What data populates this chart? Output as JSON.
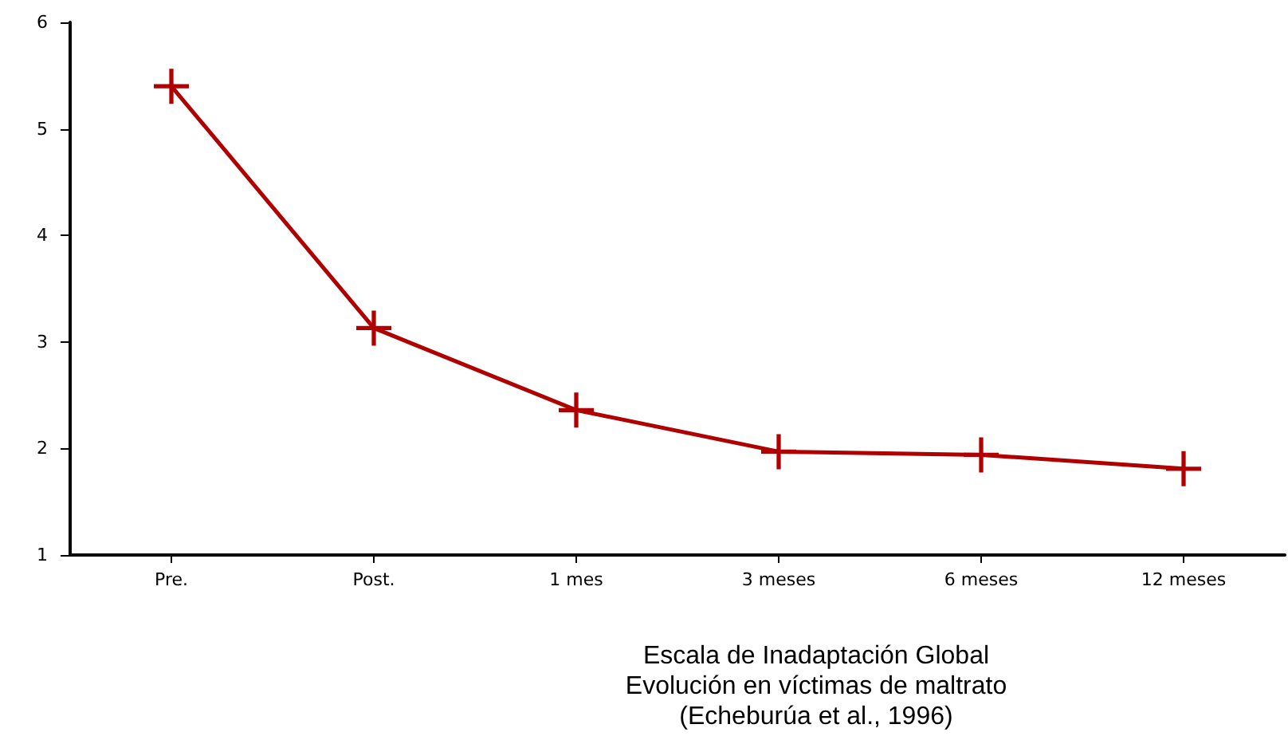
{
  "chart_data": {
    "type": "line",
    "xlabel": "Escala de Inadaptación Global\nEvolución en víctimas de maltrato\n(Echeburúa et al., 1996)",
    "categories": [
      "Pre.",
      "Post.",
      "1 mes",
      "3 meses",
      "6 meses",
      "12 meses"
    ],
    "series": [
      {
        "color": "#b00000",
        "values": [
          5.4,
          3.13,
          2.36,
          1.97,
          1.94,
          1.81
        ]
      }
    ],
    "ylim": [
      1,
      6
    ],
    "yticks": [
      1,
      2,
      3,
      4,
      5,
      6
    ],
    "grid": false,
    "marker": "cross",
    "line_style": "solid"
  }
}
